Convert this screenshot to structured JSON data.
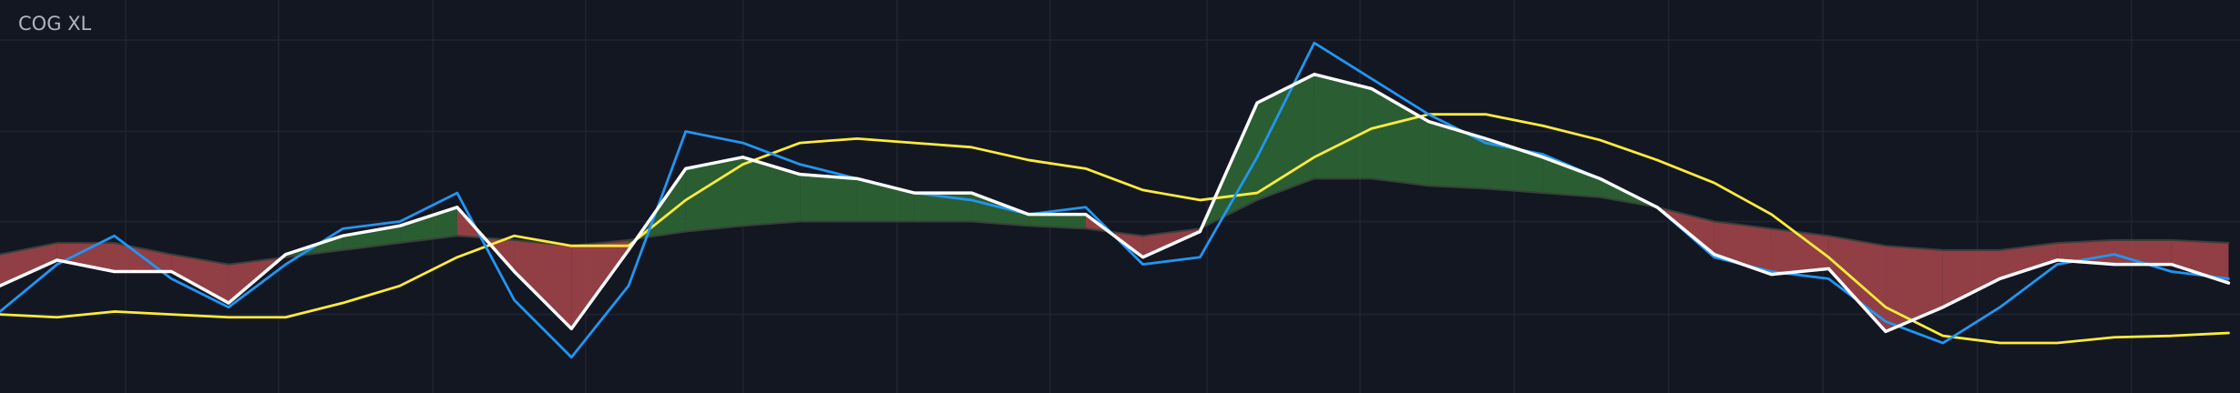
{
  "chart_data": {
    "type": "line",
    "title": "COG XL",
    "x": [
      0,
      1,
      2,
      3,
      4,
      5,
      6,
      7,
      8,
      9,
      10,
      11,
      12,
      13,
      14,
      15,
      16,
      17,
      18,
      19,
      20,
      21,
      22,
      23,
      24,
      25,
      26,
      27,
      28,
      29,
      30,
      31,
      32,
      33,
      34,
      35,
      36,
      37,
      38,
      39
    ],
    "xlim": [
      0,
      39.2
    ],
    "ylim": [
      0,
      275
    ],
    "xticks": [
      2.2,
      4.875,
      7.575,
      10.25,
      13,
      15.7,
      18.375,
      21.125,
      23.8,
      26.5,
      29.2,
      31.9,
      34.6,
      37.3
    ],
    "yticks": [
      55,
      120,
      183,
      247
    ],
    "grid": true,
    "fill": {
      "between": [
        0,
        3
      ],
      "above_color": "#2f6b35",
      "below_color": "#a8474a"
    },
    "series": [
      {
        "color": "#ffffff",
        "values": [
          75,
          93,
          85,
          85,
          63,
          97,
          110,
          117,
          130,
          85,
          45,
          100,
          157,
          165,
          153,
          150,
          140,
          140,
          125,
          125,
          95,
          113,
          203,
          223,
          213,
          190,
          178,
          165,
          150,
          130,
          97,
          83,
          87,
          43,
          60,
          80,
          93,
          90,
          90,
          77
        ]
      },
      {
        "color": "#2196f3",
        "values": [
          57,
          90,
          110,
          80,
          60,
          90,
          115,
          120,
          140,
          65,
          25,
          75,
          183,
          175,
          160,
          150,
          140,
          135,
          125,
          130,
          90,
          95,
          165,
          245,
          220,
          195,
          175,
          167,
          150,
          130,
          95,
          85,
          80,
          50,
          35,
          60,
          90,
          97,
          85,
          80
        ]
      },
      {
        "color": "#ffeb3b",
        "values": [
          55,
          53,
          57,
          55,
          53,
          53,
          63,
          75,
          95,
          110,
          103,
          103,
          135,
          160,
          175,
          178,
          175,
          172,
          163,
          157,
          142,
          135,
          140,
          165,
          185,
          195,
          195,
          187,
          177,
          163,
          147,
          125,
          95,
          60,
          40,
          35,
          35,
          39,
          40,
          42
        ]
      },
      {
        "color": "#3a3f3a",
        "values": [
          97,
          105,
          105,
          97,
          90,
          95,
          100,
          105,
          110,
          107,
          103,
          107,
          113,
          117,
          120,
          120,
          120,
          120,
          117,
          115,
          110,
          115,
          135,
          150,
          150,
          145,
          143,
          140,
          137,
          130,
          120,
          115,
          110,
          103,
          100,
          100,
          105,
          107,
          107,
          105
        ]
      }
    ]
  }
}
